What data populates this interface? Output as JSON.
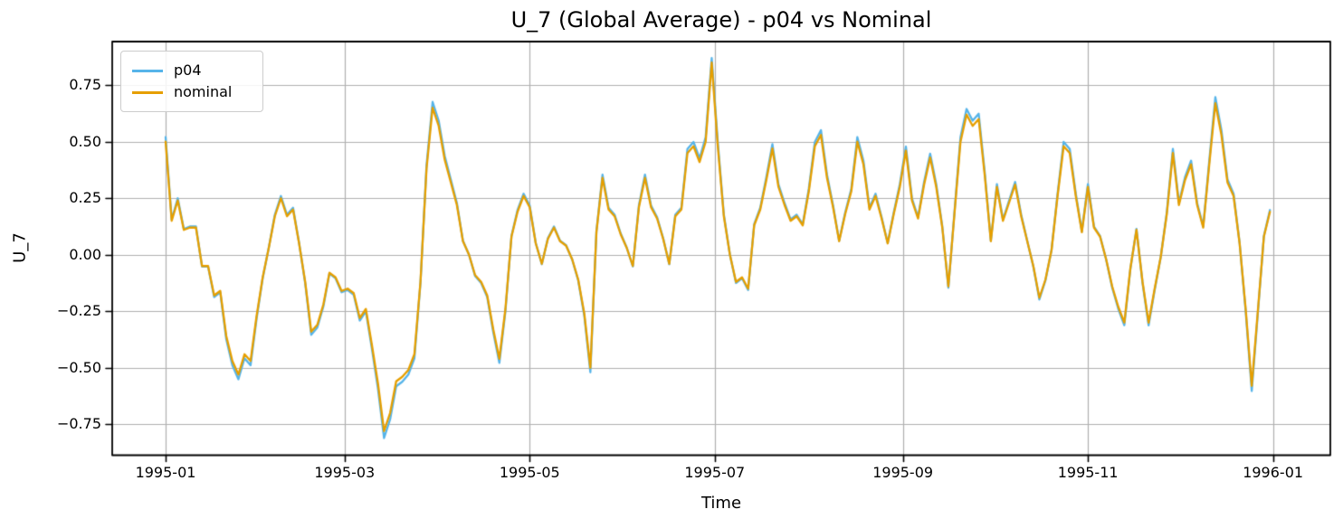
{
  "figure": {
    "kind": "matplotlib-style line chart screenshot"
  },
  "chart_data": {
    "type": "line",
    "title": "U_7 (Global Average) - p04 vs Nominal",
    "xlabel": "Time",
    "ylabel": "U_7",
    "grid": true,
    "legend_position": "upper-left",
    "x_start_date": "1995-01-01",
    "x_step_days": 2,
    "x_tick_days": [
      0,
      59,
      120,
      181,
      243,
      304,
      365
    ],
    "x_tick_labels": [
      "1995-01",
      "1995-03",
      "1995-05",
      "1995-07",
      "1995-09",
      "1995-11",
      "1996-01"
    ],
    "y_ticks": [
      0.75,
      0.5,
      0.25,
      0.0,
      -0.25,
      -0.5,
      -0.75
    ],
    "y_tick_labels": [
      "0.75",
      "0.50",
      "0.25",
      "0.00",
      "−0.25",
      "−0.50",
      "−0.75"
    ],
    "xlim_days": [
      -17.6,
      383.9
    ],
    "ylim": [
      -0.887,
      0.943
    ],
    "colors": {
      "grid": "#b0b0b0",
      "spine": "#000000",
      "background": "#ffffff",
      "p04": "#56B4E9",
      "nominal": "#E69F00"
    },
    "series": [
      {
        "name": "p04",
        "color": "#56B4E9",
        "values": [
          0.52,
          0.156,
          0.25,
          0.114,
          0.125,
          0.125,
          -0.052,
          -0.052,
          -0.187,
          -0.166,
          -0.374,
          -0.489,
          -0.551,
          -0.458,
          -0.489,
          -0.281,
          -0.104,
          0.031,
          0.177,
          0.26,
          0.177,
          0.208,
          0.052,
          -0.125,
          -0.354,
          -0.322,
          -0.229,
          -0.083,
          -0.104,
          -0.166,
          -0.156,
          -0.177,
          -0.291,
          -0.25,
          -0.416,
          -0.593,
          -0.811,
          -0.728,
          -0.582,
          -0.562,
          -0.53,
          -0.458,
          -0.125,
          0.395,
          0.676,
          0.593,
          0.437,
          0.333,
          0.229,
          0.062,
          0.0,
          -0.094,
          -0.125,
          -0.187,
          -0.343,
          -0.478,
          -0.25,
          0.083,
          0.198,
          0.27,
          0.218,
          0.052,
          -0.042,
          0.073,
          0.125,
          0.062,
          0.042,
          -0.021,
          -0.114,
          -0.27,
          -0.52,
          0.104,
          0.354,
          0.208,
          0.177,
          0.094,
          0.031,
          -0.052,
          0.218,
          0.354,
          0.218,
          0.166,
          0.073,
          -0.042,
          0.177,
          0.208,
          0.468,
          0.499,
          0.426,
          0.52,
          0.87,
          0.499,
          0.177,
          0.0,
          -0.125,
          -0.104,
          -0.156,
          0.135,
          0.208,
          0.343,
          0.489,
          0.312,
          0.229,
          0.156,
          0.177,
          0.135,
          0.291,
          0.499,
          0.551,
          0.354,
          0.218,
          0.062,
          0.187,
          0.291,
          0.52,
          0.416,
          0.208,
          0.27,
          0.166,
          0.052,
          0.187,
          0.312,
          0.478,
          0.25,
          0.166,
          0.322,
          0.447,
          0.312,
          0.125,
          -0.146,
          0.187,
          0.52,
          0.645,
          0.593,
          0.624,
          0.364,
          0.062,
          0.312,
          0.156,
          0.239,
          0.322,
          0.177,
          0.062,
          -0.052,
          -0.198,
          -0.114,
          0.021,
          0.27,
          0.499,
          0.468,
          0.27,
          0.104,
          0.312,
          0.125,
          0.083,
          -0.021,
          -0.146,
          -0.239,
          -0.312,
          -0.062,
          0.114,
          -0.125,
          -0.312,
          -0.156,
          -0.01,
          0.187,
          0.468,
          0.229,
          0.343,
          0.416,
          0.229,
          0.125,
          0.416,
          0.697,
          0.551,
          0.333,
          0.27,
          0.052,
          -0.25,
          -0.603,
          -0.26,
          0.083,
          0.198
        ]
      },
      {
        "name": "nominal",
        "color": "#E69F00",
        "values": [
          0.5,
          0.15,
          0.24,
          0.11,
          0.12,
          0.12,
          -0.05,
          -0.05,
          -0.18,
          -0.16,
          -0.36,
          -0.47,
          -0.53,
          -0.44,
          -0.47,
          -0.27,
          -0.1,
          0.03,
          0.17,
          0.25,
          0.17,
          0.2,
          0.05,
          -0.12,
          -0.34,
          -0.31,
          -0.22,
          -0.08,
          -0.1,
          -0.16,
          -0.15,
          -0.17,
          -0.28,
          -0.24,
          -0.4,
          -0.57,
          -0.78,
          -0.7,
          -0.56,
          -0.54,
          -0.51,
          -0.44,
          -0.12,
          0.38,
          0.65,
          0.57,
          0.42,
          0.32,
          0.22,
          0.06,
          0.0,
          -0.09,
          -0.12,
          -0.18,
          -0.33,
          -0.46,
          -0.24,
          0.08,
          0.19,
          0.26,
          0.21,
          0.05,
          -0.04,
          0.07,
          0.12,
          0.06,
          0.04,
          -0.02,
          -0.11,
          -0.26,
          -0.5,
          0.1,
          0.34,
          0.2,
          0.17,
          0.09,
          0.03,
          -0.05,
          0.21,
          0.34,
          0.21,
          0.16,
          0.07,
          -0.04,
          0.17,
          0.2,
          0.45,
          0.48,
          0.41,
          0.5,
          0.85,
          0.48,
          0.17,
          0.0,
          -0.12,
          -0.1,
          -0.15,
          0.13,
          0.2,
          0.33,
          0.47,
          0.3,
          0.22,
          0.15,
          0.17,
          0.13,
          0.28,
          0.48,
          0.53,
          0.34,
          0.21,
          0.06,
          0.18,
          0.28,
          0.5,
          0.4,
          0.2,
          0.26,
          0.16,
          0.05,
          0.18,
          0.3,
          0.46,
          0.24,
          0.16,
          0.31,
          0.43,
          0.3,
          0.12,
          -0.14,
          0.18,
          0.5,
          0.62,
          0.57,
          0.6,
          0.35,
          0.06,
          0.3,
          0.15,
          0.23,
          0.31,
          0.17,
          0.06,
          -0.05,
          -0.19,
          -0.11,
          0.02,
          0.26,
          0.48,
          0.45,
          0.26,
          0.1,
          0.3,
          0.12,
          0.08,
          -0.02,
          -0.14,
          -0.23,
          -0.3,
          -0.06,
          0.11,
          -0.12,
          -0.3,
          -0.15,
          -0.01,
          0.18,
          0.45,
          0.22,
          0.33,
          0.4,
          0.22,
          0.12,
          0.4,
          0.67,
          0.53,
          0.32,
          0.26,
          0.05,
          -0.24,
          -0.58,
          -0.25,
          0.08,
          0.19
        ]
      }
    ]
  }
}
